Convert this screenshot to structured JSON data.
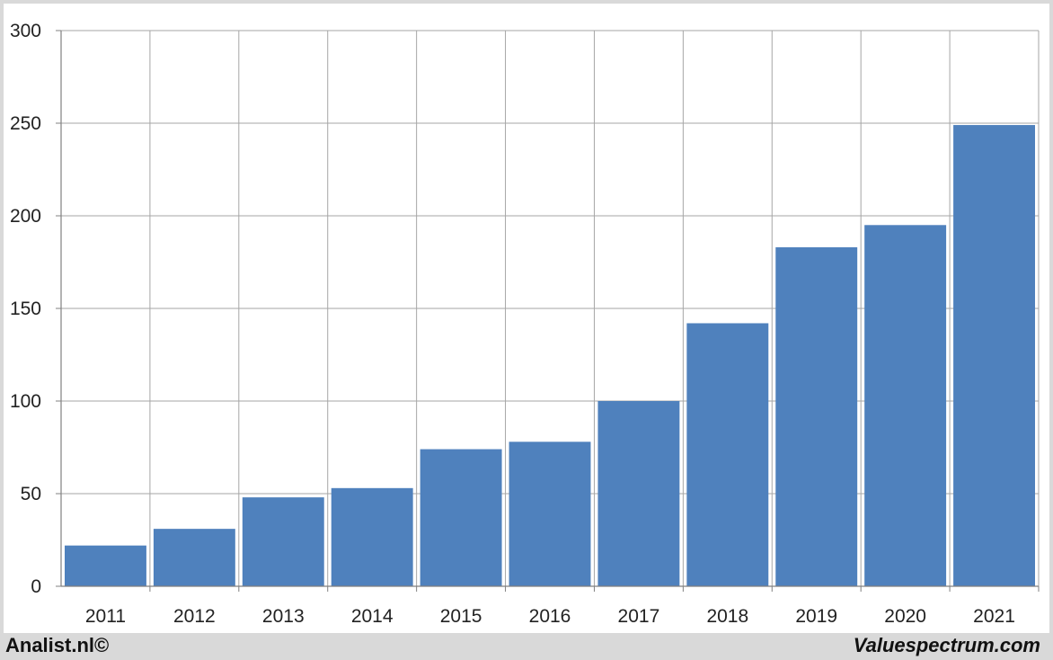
{
  "footer": {
    "left_text": "Analist.nl©",
    "right_text": "Valuespectrum.com"
  },
  "colors": {
    "bar": "#4f81bd",
    "grid": "#a6a6a6",
    "axis": "#808080"
  },
  "chart_data": {
    "type": "bar",
    "title": "",
    "xlabel": "",
    "ylabel": "",
    "categories": [
      "2011",
      "2012",
      "2013",
      "2014",
      "2015",
      "2016",
      "2017",
      "2018",
      "2019",
      "2020",
      "2021"
    ],
    "values": [
      22,
      31,
      48,
      53,
      74,
      78,
      100,
      142,
      183,
      195,
      249
    ],
    "ylim": [
      0,
      300
    ],
    "yticks": [
      0,
      50,
      100,
      150,
      200,
      250,
      300
    ],
    "grid": true,
    "legend": "none"
  }
}
